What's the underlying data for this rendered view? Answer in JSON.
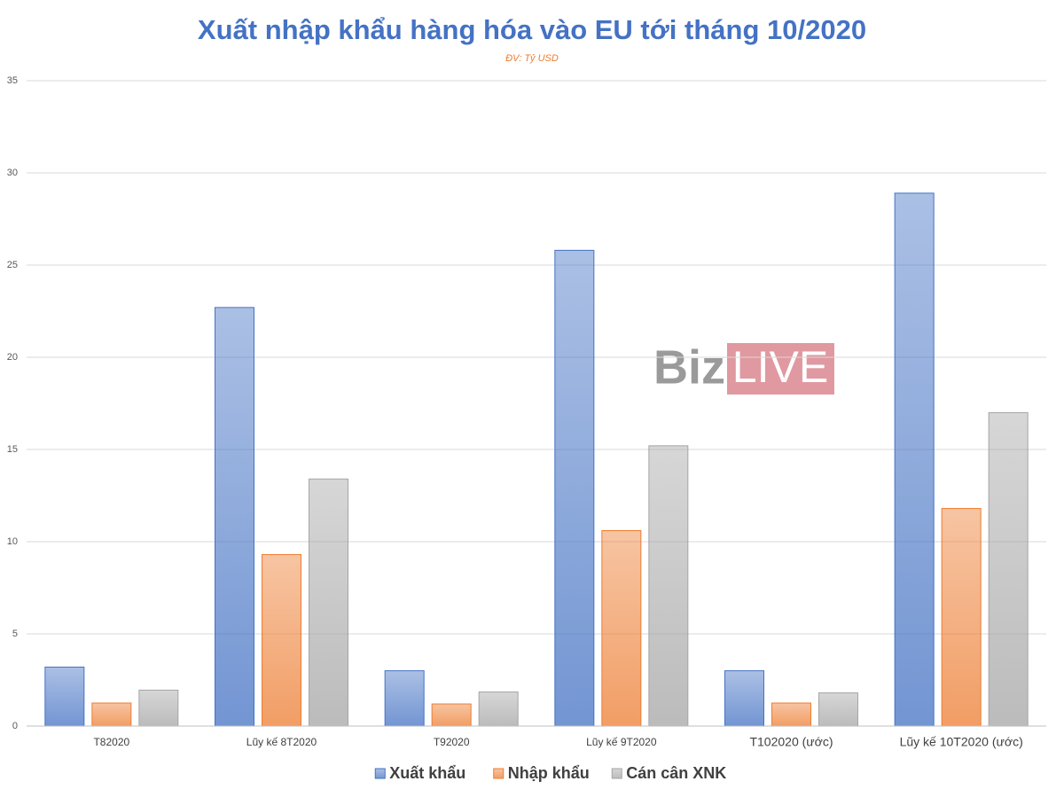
{
  "chart_data": {
    "type": "bar",
    "title": "Xuất nhập khẩu hàng hóa vào EU tới tháng 10/2020",
    "subtitle": "ĐV: Tỷ USD",
    "watermark": {
      "left": "Biz",
      "right": "LIVE"
    },
    "categories": [
      "T82020",
      "Lũy kế 8T2020",
      "T92020",
      "Lũy kế 9T2020",
      "T102020 (ước)",
      "Lũy kế 10T2020 (ước)"
    ],
    "series": [
      {
        "name": "Xuất khẩu",
        "color": "#4472c4",
        "values": [
          3.2,
          22.7,
          3.0,
          25.8,
          3.0,
          28.9
        ]
      },
      {
        "name": "Nhập khẩu",
        "color": "#ed7d31",
        "values": [
          1.25,
          9.3,
          1.2,
          10.6,
          1.25,
          11.8
        ]
      },
      {
        "name": "Cán cân XNK",
        "color": "#a5a5a5",
        "values": [
          1.95,
          13.4,
          1.85,
          15.2,
          1.8,
          17.0
        ]
      }
    ],
    "ylim": [
      0,
      35
    ],
    "yticks": [
      0,
      5,
      10,
      15,
      20,
      25,
      30,
      35
    ],
    "grid": true
  }
}
